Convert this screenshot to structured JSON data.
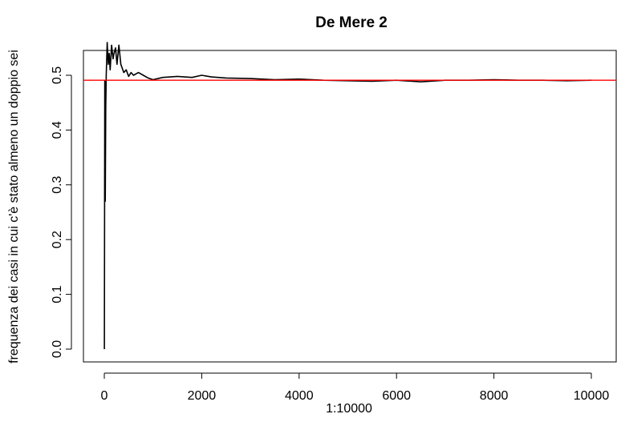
{
  "chart_data": {
    "type": "line",
    "title": "De Mere 2",
    "xlabel": "1:10000",
    "ylabel": "frequenza dei casi in cui c'è stato almeno un doppio sei",
    "xlim": [
      0,
      10000
    ],
    "ylim": [
      0,
      0.56
    ],
    "x_ticks": [
      0,
      2000,
      4000,
      6000,
      8000,
      10000
    ],
    "x_tick_labels": [
      "0",
      "2000",
      "4000",
      "6000",
      "8000",
      "10000"
    ],
    "y_ticks": [
      0.0,
      0.1,
      0.2,
      0.3,
      0.4,
      0.5
    ],
    "y_tick_labels": [
      "0.0",
      "0.1",
      "0.2",
      "0.3",
      "0.4",
      "0.5"
    ],
    "grid": false,
    "series": [
      {
        "color": "#000000",
        "x": [
          1,
          10,
          20,
          30,
          40,
          50,
          60,
          80,
          100,
          120,
          150,
          180,
          200,
          230,
          260,
          300,
          340,
          400,
          450,
          500,
          550,
          600,
          700,
          800,
          900,
          1000,
          1200,
          1500,
          1800,
          2000,
          2200,
          2500,
          3000,
          3500,
          4000,
          4500,
          5000,
          5500,
          6000,
          6500,
          7000,
          7500,
          8000,
          8500,
          9000,
          9500,
          10000
        ],
        "y": [
          0.0,
          0.49,
          0.27,
          0.44,
          0.5,
          0.53,
          0.56,
          0.52,
          0.54,
          0.51,
          0.555,
          0.53,
          0.54,
          0.55,
          0.52,
          0.555,
          0.52,
          0.505,
          0.51,
          0.498,
          0.505,
          0.5,
          0.505,
          0.5,
          0.495,
          0.492,
          0.496,
          0.498,
          0.496,
          0.5,
          0.497,
          0.495,
          0.494,
          0.492,
          0.493,
          0.491,
          0.49,
          0.489,
          0.491,
          0.488,
          0.491,
          0.491,
          0.492,
          0.491,
          0.491,
          0.49,
          0.491
        ]
      }
    ],
    "reference_line": {
      "y": 0.491,
      "color": "#ff0000"
    }
  }
}
